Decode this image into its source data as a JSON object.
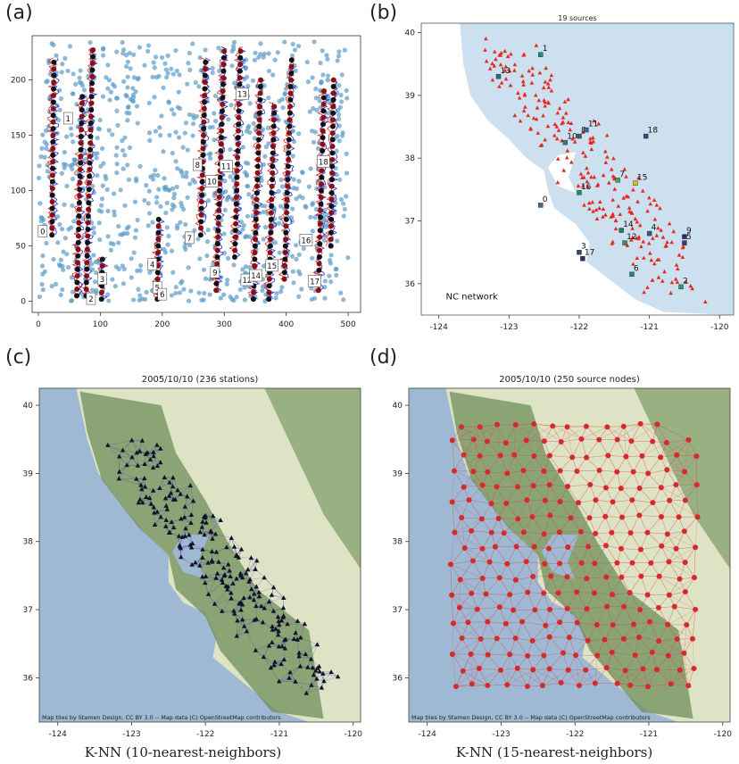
{
  "panel_labels": [
    "(a)",
    "(b)",
    "(c)",
    "(d)"
  ],
  "chart_data": [
    {
      "id": "a",
      "type": "scatter",
      "title": "",
      "xlabel": "",
      "ylabel": "",
      "xlim": [
        -10,
        520
      ],
      "ylim": [
        -10,
        240
      ],
      "xticks": [
        0,
        100,
        200,
        300,
        400,
        500
      ],
      "yticks": [
        0,
        50,
        100,
        150,
        200
      ],
      "background_points_color": "#5b9bc8",
      "trace_colors": [
        "#e8201a",
        "#1a2fe8",
        "#111111"
      ],
      "event_labels": [
        {
          "id": "0",
          "x": 7,
          "y": 63
        },
        {
          "id": "1",
          "x": 48,
          "y": 165
        },
        {
          "id": "2",
          "x": 85,
          "y": 2
        },
        {
          "id": "3",
          "x": 103,
          "y": 20
        },
        {
          "id": "4",
          "x": 184,
          "y": 33
        },
        {
          "id": "5",
          "x": 192,
          "y": 12
        },
        {
          "id": "6",
          "x": 200,
          "y": 6
        },
        {
          "id": "7",
          "x": 244,
          "y": 57
        },
        {
          "id": "8",
          "x": 257,
          "y": 123
        },
        {
          "id": "9",
          "x": 285,
          "y": 26
        },
        {
          "id": "10",
          "x": 280,
          "y": 108
        },
        {
          "id": "11",
          "x": 303,
          "y": 122
        },
        {
          "id": "12",
          "x": 337,
          "y": 19
        },
        {
          "id": "13",
          "x": 329,
          "y": 187
        },
        {
          "id": "14",
          "x": 351,
          "y": 23
        },
        {
          "id": "15",
          "x": 377,
          "y": 32
        },
        {
          "id": "16",
          "x": 432,
          "y": 55
        },
        {
          "id": "17",
          "x": 446,
          "y": 18
        },
        {
          "id": "18",
          "x": 460,
          "y": 126
        }
      ],
      "wave_columns": [
        {
          "x0": 75,
          "slope": 0.05,
          "y0": 5,
          "y1": 230
        },
        {
          "x0": 60,
          "slope": 0.05,
          "y0": 5,
          "y1": 185
        },
        {
          "x0": 20,
          "slope": 0.02,
          "y0": 60,
          "y1": 220
        },
        {
          "x0": 100,
          "slope": 0.04,
          "y0": 2,
          "y1": 40
        },
        {
          "x0": 190,
          "slope": 0.03,
          "y0": 2,
          "y1": 75
        },
        {
          "x0": 260,
          "slope": 0.05,
          "y0": 60,
          "y1": 220
        },
        {
          "x0": 285,
          "slope": 0.06,
          "y0": 10,
          "y1": 230
        },
        {
          "x0": 315,
          "slope": 0.05,
          "y0": 40,
          "y1": 230
        },
        {
          "x0": 345,
          "slope": 0.06,
          "y0": 2,
          "y1": 200
        },
        {
          "x0": 370,
          "slope": 0.05,
          "y0": 2,
          "y1": 180
        },
        {
          "x0": 395,
          "slope": 0.06,
          "y0": 20,
          "y1": 220
        },
        {
          "x0": 450,
          "slope": 0.05,
          "y0": 10,
          "y1": 190
        },
        {
          "x0": 470,
          "slope": 0.03,
          "y0": 50,
          "y1": 200
        }
      ]
    },
    {
      "id": "b",
      "type": "scatter",
      "title": "19 sources",
      "annotation": "NC network",
      "xlim": [
        -124.25,
        -119.8
      ],
      "ylim": [
        35.5,
        40.15
      ],
      "xticks": [
        -124,
        -123,
        -122,
        -121,
        -120
      ],
      "yticks": [
        36,
        37,
        38,
        39,
        40
      ],
      "land_color": "#cde0ef",
      "station_color": "#e42b1f",
      "sources": [
        {
          "id": "0",
          "lon": -122.55,
          "lat": 37.25,
          "color": "#3c6b8a"
        },
        {
          "id": "1",
          "lon": -122.55,
          "lat": 39.65,
          "color": "#1e8f7e"
        },
        {
          "id": "2",
          "lon": -120.55,
          "lat": 35.95,
          "color": "#1f9c6b"
        },
        {
          "id": "3",
          "lon": -122.0,
          "lat": 36.5,
          "color": "#2b4a6a"
        },
        {
          "id": "4",
          "lon": -121.0,
          "lat": 36.8,
          "color": "#2d5f7c"
        },
        {
          "id": "5",
          "lon": -120.5,
          "lat": 36.65,
          "color": "#3a3f7a"
        },
        {
          "id": "6",
          "lon": -121.25,
          "lat": 36.15,
          "color": "#1c8a74"
        },
        {
          "id": "7",
          "lon": -121.45,
          "lat": 37.65,
          "color": "#3bab5b"
        },
        {
          "id": "8",
          "lon": -122.0,
          "lat": 38.35,
          "color": "#355e7e"
        },
        {
          "id": "9",
          "lon": -120.5,
          "lat": 36.75,
          "color": "#2a2d6a"
        },
        {
          "id": "10",
          "lon": -122.2,
          "lat": 38.25,
          "color": "#2d7a88"
        },
        {
          "id": "11",
          "lon": -121.9,
          "lat": 38.45,
          "color": "#2a6a8a"
        },
        {
          "id": "12",
          "lon": -121.35,
          "lat": 36.65,
          "color": "#3d8a6a"
        },
        {
          "id": "13",
          "lon": -123.15,
          "lat": 39.3,
          "color": "#2f6a7e"
        },
        {
          "id": "14",
          "lon": -121.4,
          "lat": 36.85,
          "color": "#1f7a6a"
        },
        {
          "id": "15",
          "lon": -121.2,
          "lat": 37.6,
          "color": "#d9c21a"
        },
        {
          "id": "16",
          "lon": -122.0,
          "lat": 37.45,
          "color": "#2a8a6a"
        },
        {
          "id": "17",
          "lon": -121.95,
          "lat": 36.4,
          "color": "#3a2a5a"
        },
        {
          "id": "18",
          "lon": -121.05,
          "lat": 38.35,
          "color": "#3a4a7a"
        }
      ]
    },
    {
      "id": "c",
      "type": "scatter",
      "title": "2005/10/10 (236 stations)",
      "xlabel": "K-NN (10-nearest-neighbors)",
      "attribution": "Map tiles by Stamen Design, CC BY 3.0 -- Map data (C) OpenStreetMap contributors",
      "xlim": [
        -124.25,
        -119.9
      ],
      "ylim": [
        35.35,
        40.25
      ],
      "xticks": [
        -124,
        -123,
        -122,
        -121,
        -120
      ],
      "yticks": [
        36,
        37,
        38,
        39,
        40
      ],
      "node_color": "#111122",
      "edge_color": "#3b3fb8"
    },
    {
      "id": "d",
      "type": "scatter",
      "title": "2005/10/10 (250 source nodes)",
      "xlabel": "K-NN (15-nearest-neighbors)",
      "attribution": "Map tiles by Stamen Design, CC BY 3.0 -- Map data (C) OpenStreetMap contributors",
      "xlim": [
        -124.25,
        -119.9
      ],
      "ylim": [
        35.35,
        40.25
      ],
      "xticks": [
        -124,
        -123,
        -122,
        -121,
        -120
      ],
      "yticks": [
        36,
        37,
        38,
        39,
        40
      ],
      "node_color": "#d62a2a",
      "edge_color": "#d84a4a",
      "grid_lon": [
        -123.65,
        -120.25
      ],
      "grid_lat": [
        35.9,
        39.7
      ]
    }
  ]
}
